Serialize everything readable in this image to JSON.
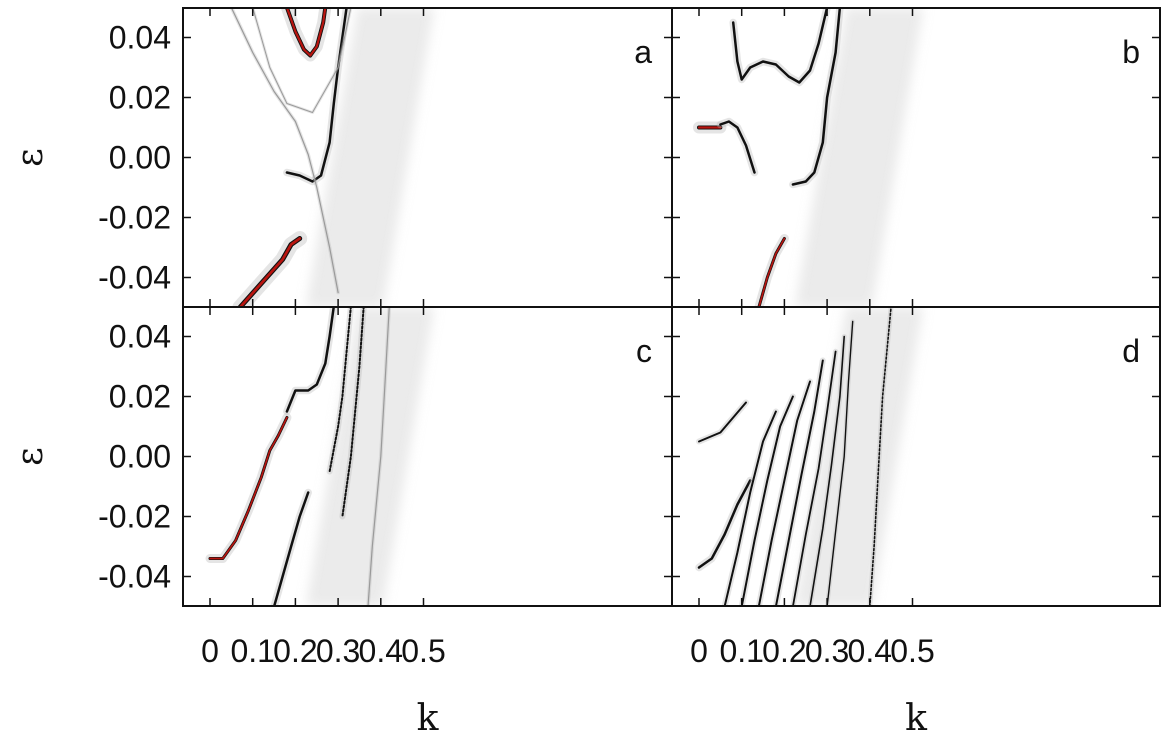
{
  "chart_data": {
    "type": "heatmap",
    "layout": "2x2 panels, shared axes",
    "xlabel": "k",
    "ylabel": "ε",
    "xlim": [
      0,
      0.53
    ],
    "ylim": [
      -0.05,
      0.05
    ],
    "x_ticks": [
      0,
      0.1,
      0.2,
      0.3,
      0.4,
      0.5
    ],
    "x_tick_labels": [
      "0",
      "0.1",
      "0.2",
      "0.3",
      "0.4",
      "0.5"
    ],
    "y_ticks": [
      0.04,
      0.02,
      0.0,
      -0.02,
      -0.04
    ],
    "y_tick_labels": [
      "0.04",
      "0.02",
      "0.00",
      "-0.02",
      "-0.04"
    ],
    "colors": {
      "band": "#111111",
      "peak": "#b8140f",
      "background": "#ffffff"
    },
    "panels": [
      {
        "label": "a",
        "bands": [
          {
            "points": [
              [
                0.07,
                -0.05
              ],
              [
                0.12,
                -0.042
              ],
              [
                0.17,
                -0.034
              ],
              [
                0.19,
                -0.029
              ],
              [
                0.21,
                -0.027
              ]
            ],
            "peak": true,
            "width": 5
          },
          {
            "points": [
              [
                0.18,
                -0.005
              ],
              [
                0.21,
                -0.006
              ],
              [
                0.24,
                -0.008
              ],
              [
                0.26,
                -0.006
              ],
              [
                0.28,
                0.005
              ],
              [
                0.29,
                0.018
              ],
              [
                0.3,
                0.03
              ],
              [
                0.32,
                0.05
              ]
            ],
            "width": 2.5
          },
          {
            "points": [
              [
                0.18,
                0.05
              ],
              [
                0.2,
                0.042
              ],
              [
                0.22,
                0.036
              ],
              [
                0.235,
                0.034
              ],
              [
                0.25,
                0.037
              ],
              [
                0.265,
                0.045
              ],
              [
                0.27,
                0.05
              ]
            ],
            "peak": true,
            "width": 4
          },
          {
            "points": [
              [
                0.05,
                0.05
              ],
              [
                0.1,
                0.035
              ],
              [
                0.15,
                0.022
              ],
              [
                0.2,
                0.012
              ],
              [
                0.23,
                0.001
              ],
              [
                0.25,
                -0.01
              ],
              [
                0.28,
                -0.03
              ],
              [
                0.3,
                -0.045
              ]
            ],
            "width": 1.2,
            "faint": true
          },
          {
            "points": [
              [
                0.1,
                0.05
              ],
              [
                0.14,
                0.03
              ],
              [
                0.18,
                0.018
              ],
              [
                0.24,
                0.015
              ],
              [
                0.3,
                0.03
              ],
              [
                0.33,
                0.05
              ]
            ],
            "width": 1,
            "faint": true
          }
        ]
      },
      {
        "label": "b",
        "bands": [
          {
            "points": [
              [
                0.0,
                0.01
              ],
              [
                0.05,
                0.01
              ]
            ],
            "peak": true,
            "width": 4
          },
          {
            "points": [
              [
                0.05,
                0.011
              ],
              [
                0.07,
                0.012
              ],
              [
                0.09,
                0.01
              ],
              [
                0.11,
                0.004
              ],
              [
                0.13,
                -0.005
              ]
            ],
            "width": 2.5
          },
          {
            "points": [
              [
                0.14,
                -0.05
              ],
              [
                0.16,
                -0.04
              ],
              [
                0.18,
                -0.032
              ],
              [
                0.2,
                -0.027
              ]
            ],
            "peak": true,
            "width": 3
          },
          {
            "points": [
              [
                0.22,
                -0.009
              ],
              [
                0.25,
                -0.008
              ],
              [
                0.27,
                -0.005
              ],
              [
                0.29,
                0.005
              ],
              [
                0.3,
                0.02
              ],
              [
                0.32,
                0.035
              ],
              [
                0.33,
                0.05
              ]
            ],
            "width": 2.5
          },
          {
            "points": [
              [
                0.08,
                0.045
              ],
              [
                0.09,
                0.032
              ],
              [
                0.1,
                0.026
              ],
              [
                0.12,
                0.03
              ],
              [
                0.15,
                0.032
              ],
              [
                0.18,
                0.031
              ],
              [
                0.21,
                0.027
              ],
              [
                0.235,
                0.025
              ],
              [
                0.26,
                0.029
              ],
              [
                0.28,
                0.038
              ],
              [
                0.3,
                0.05
              ]
            ],
            "width": 2.5
          }
        ]
      },
      {
        "label": "c",
        "bands": [
          {
            "points": [
              [
                0.0,
                -0.034
              ],
              [
                0.03,
                -0.034
              ],
              [
                0.06,
                -0.028
              ],
              [
                0.09,
                -0.018
              ],
              [
                0.12,
                -0.007
              ],
              [
                0.14,
                0.002
              ],
              [
                0.16,
                0.007
              ],
              [
                0.18,
                0.013
              ]
            ],
            "width": 3,
            "peak": true
          },
          {
            "points": [
              [
                0.18,
                0.015
              ],
              [
                0.2,
                0.022
              ],
              [
                0.23,
                0.022
              ],
              [
                0.25,
                0.024
              ],
              [
                0.27,
                0.031
              ],
              [
                0.28,
                0.04
              ],
              [
                0.29,
                0.05
              ]
            ],
            "width": 2.5
          },
          {
            "points": [
              [
                0.15,
                -0.05
              ],
              [
                0.17,
                -0.04
              ],
              [
                0.19,
                -0.03
              ],
              [
                0.21,
                -0.02
              ],
              [
                0.23,
                -0.012
              ]
            ],
            "width": 2.5
          },
          {
            "points": [
              [
                0.33,
                0.05
              ],
              [
                0.32,
                0.035
              ],
              [
                0.31,
                0.02
              ],
              [
                0.3,
                0.01
              ],
              [
                0.28,
                -0.005
              ]
            ],
            "width": 2,
            "dotted": true
          },
          {
            "points": [
              [
                0.36,
                0.05
              ],
              [
                0.35,
                0.03
              ],
              [
                0.33,
                0.0
              ],
              [
                0.31,
                -0.02
              ]
            ],
            "width": 2,
            "dotted": true
          },
          {
            "points": [
              [
                0.42,
                0.05
              ],
              [
                0.41,
                0.025
              ],
              [
                0.4,
                0.0
              ],
              [
                0.38,
                -0.03
              ],
              [
                0.37,
                -0.05
              ]
            ],
            "width": 1.2,
            "faint": true
          }
        ]
      },
      {
        "label": "d",
        "bands": [
          {
            "points": [
              [
                0.0,
                -0.037
              ],
              [
                0.03,
                -0.034
              ],
              [
                0.06,
                -0.026
              ],
              [
                0.09,
                -0.016
              ],
              [
                0.12,
                -0.008
              ]
            ],
            "width": 2.5
          },
          {
            "points": [
              [
                0.0,
                0.005
              ],
              [
                0.05,
                0.008
              ],
              [
                0.08,
                0.013
              ],
              [
                0.11,
                0.018
              ]
            ],
            "width": 2
          },
          {
            "points": [
              [
                0.06,
                -0.05
              ],
              [
                0.09,
                -0.032
              ],
              [
                0.12,
                -0.012
              ],
              [
                0.15,
                0.005
              ],
              [
                0.18,
                0.015
              ]
            ],
            "width": 2
          },
          {
            "points": [
              [
                0.1,
                -0.05
              ],
              [
                0.13,
                -0.028
              ],
              [
                0.16,
                -0.008
              ],
              [
                0.19,
                0.01
              ],
              [
                0.22,
                0.02
              ]
            ],
            "width": 2
          },
          {
            "points": [
              [
                0.14,
                -0.05
              ],
              [
                0.17,
                -0.028
              ],
              [
                0.2,
                -0.008
              ],
              [
                0.23,
                0.012
              ],
              [
                0.26,
                0.025
              ]
            ],
            "width": 2
          },
          {
            "points": [
              [
                0.18,
                -0.05
              ],
              [
                0.21,
                -0.028
              ],
              [
                0.24,
                -0.006
              ],
              [
                0.27,
                0.015
              ],
              [
                0.29,
                0.032
              ]
            ],
            "width": 2
          },
          {
            "points": [
              [
                0.22,
                -0.05
              ],
              [
                0.25,
                -0.026
              ],
              [
                0.28,
                -0.004
              ],
              [
                0.3,
                0.015
              ],
              [
                0.32,
                0.035
              ]
            ],
            "width": 1.8
          },
          {
            "points": [
              [
                0.26,
                -0.05
              ],
              [
                0.29,
                -0.024
              ],
              [
                0.31,
                -0.003
              ],
              [
                0.33,
                0.02
              ],
              [
                0.34,
                0.04
              ]
            ],
            "width": 1.6
          },
          {
            "points": [
              [
                0.3,
                -0.05
              ],
              [
                0.32,
                -0.025
              ],
              [
                0.34,
                0.0
              ],
              [
                0.35,
                0.025
              ],
              [
                0.36,
                0.045
              ]
            ],
            "width": 1.4
          },
          {
            "points": [
              [
                0.4,
                -0.05
              ],
              [
                0.41,
                -0.03
              ],
              [
                0.42,
                -0.005
              ],
              [
                0.43,
                0.02
              ],
              [
                0.45,
                0.05
              ]
            ],
            "width": 1.6,
            "dotted": true
          }
        ]
      }
    ]
  }
}
